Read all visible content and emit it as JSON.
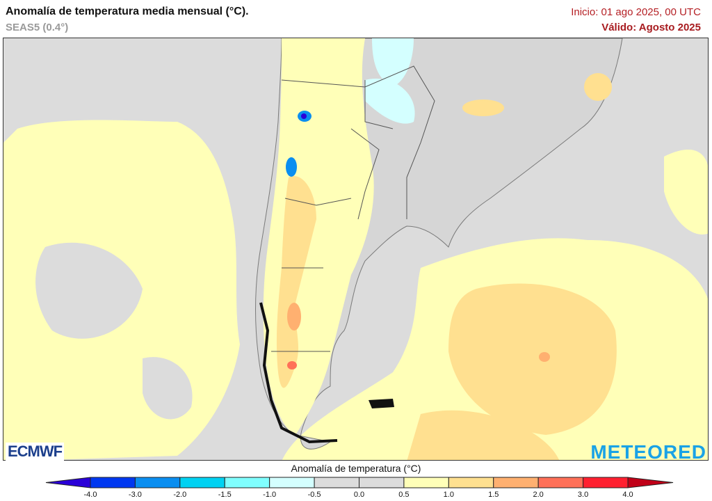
{
  "header": {
    "title": "Anomalía de temperatura media mensual (°C).",
    "subtitle": "SEAS5 (0.4°)",
    "init": "Inicio: 01 ago 2025, 00 UTC",
    "valid": "Válido: Agosto 2025"
  },
  "logos": {
    "left": "ECMWF",
    "right": "METEORED"
  },
  "colorbar": {
    "title": "Anomalía de temperatura (°C)",
    "ticks": [
      "-4.0",
      "-3.0",
      "-2.0",
      "-1.5",
      "-1.0",
      "-0.5",
      "0.0",
      "0.5",
      "1.0",
      "1.5",
      "2.0",
      "3.0",
      "4.0"
    ],
    "colors": [
      "#0038f0",
      "#0a8ef0",
      "#00d2f2",
      "#80ffff",
      "#d4ffff",
      "#dcdcdc",
      "#dcdcdc",
      "#ffffb8",
      "#ffe090",
      "#ffb070",
      "#ff7058",
      "#ff2030"
    ],
    "under_color": "#2a00d8",
    "over_color": "#c00018"
  }
}
